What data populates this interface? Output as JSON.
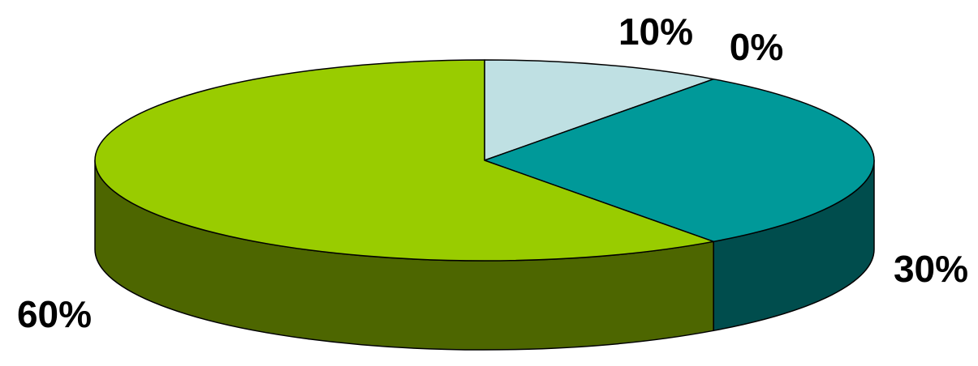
{
  "chart_data": {
    "type": "pie",
    "style": "3d",
    "title": "",
    "slices": [
      {
        "label": "10%",
        "value": 10,
        "color": "#bfe0e3"
      },
      {
        "label": "0%",
        "value": 0,
        "color": "#0f6666"
      },
      {
        "label": "30%",
        "value": 30,
        "color": "#009999",
        "side_color": "#004d4d"
      },
      {
        "label": "60%",
        "value": 60,
        "color": "#99cc00",
        "side_color": "#4d6600"
      }
    ],
    "legend": "none"
  }
}
